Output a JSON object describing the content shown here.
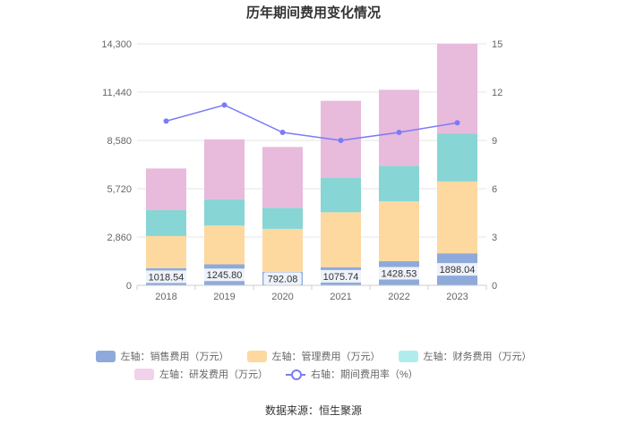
{
  "chart_data": {
    "type": "bar",
    "stacked": true,
    "title": "历年期间费用变化情况",
    "categories": [
      "2018",
      "2019",
      "2020",
      "2021",
      "2022",
      "2023"
    ],
    "left_axis": {
      "min": 0,
      "max": 14300,
      "ticks": [
        "0",
        "2,860",
        "5,720",
        "8,580",
        "11,440",
        "14,300"
      ]
    },
    "right_axis": {
      "min": 0,
      "max": 15,
      "ticks": [
        "0",
        "3",
        "6",
        "9",
        "12",
        "15"
      ]
    },
    "series": [
      {
        "name": "左轴：销售费用（万元）",
        "color": "#8eaadb",
        "values": [
          1018.54,
          1245.8,
          792.08,
          1075.74,
          1428.53,
          1898.04
        ],
        "labels": [
          "1018.54",
          "1245.80",
          "792.08",
          "1075.74",
          "1428.53",
          "1898.04"
        ]
      },
      {
        "name": "左轴：管理费用（万元）",
        "color": "#fdd9a0",
        "values": [
          1900,
          2300,
          2550,
          3250,
          3550,
          4250
        ]
      },
      {
        "name": "左轴：财务费用（万元）",
        "color": "#88d5d5",
        "values": [
          1550,
          1550,
          1250,
          2050,
          2100,
          2850
        ]
      },
      {
        "name": "左轴：研发费用（万元）",
        "color": "#e8badc",
        "values": [
          2450,
          3550,
          3600,
          4550,
          4500,
          5300
        ]
      }
    ],
    "line_series": {
      "name": "右轴：期间费用率（%）",
      "color": "#7b7cf5",
      "axis": "right",
      "values": [
        10.2,
        11.2,
        9.5,
        9.0,
        9.5,
        10.1
      ]
    }
  },
  "source": "数据来源：恒生聚源"
}
